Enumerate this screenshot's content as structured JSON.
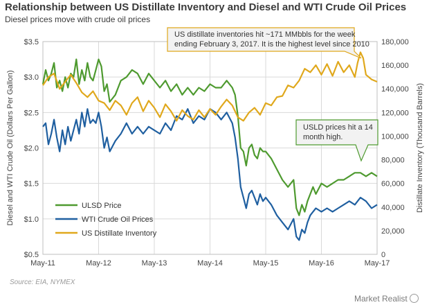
{
  "header": {
    "title": "Relationship between US Distillate Inventory and Diesel and WTI Crude Oil Prices",
    "subtitle": "Diesel prices move with crude oil prices"
  },
  "footer": {
    "source": "Source: EIA, NYMEX",
    "logo_text": "Market Realist"
  },
  "chart_data": {
    "type": "line",
    "x_tick_labels": [
      "May-11",
      "May-12",
      "May-13",
      "May-14",
      "May-15",
      "May-16",
      "May-17"
    ],
    "ylabel": "Diesel and WTI Crude Oil (Dollars Per Gallon)",
    "y2label": "Distillate Inventory (Thousand Barrels)",
    "y_ticks": [
      "$0.5",
      "$1.0",
      "$1.5",
      "$2.0",
      "$2.5",
      "$3.0",
      "$3.5"
    ],
    "y2_ticks": [
      "0",
      "20,000",
      "40,000",
      "60,000",
      "80,000",
      "100,000",
      "120,000",
      "140,000",
      "160,000",
      "180,000"
    ],
    "ylim": [
      0.5,
      3.5
    ],
    "y2lim": [
      0,
      180000
    ],
    "xlim": [
      0,
      6
    ],
    "grid": true,
    "legend_position": "lower-left",
    "series": [
      {
        "name": "ULSD Price",
        "color": "#4e9a2f",
        "axis": "left",
        "x": [
          0,
          0.05,
          0.1,
          0.15,
          0.2,
          0.25,
          0.3,
          0.35,
          0.4,
          0.45,
          0.5,
          0.55,
          0.6,
          0.65,
          0.7,
          0.75,
          0.8,
          0.85,
          0.9,
          0.95,
          1.0,
          1.05,
          1.1,
          1.15,
          1.2,
          1.3,
          1.4,
          1.5,
          1.6,
          1.7,
          1.8,
          1.9,
          2.0,
          2.1,
          2.2,
          2.3,
          2.4,
          2.5,
          2.6,
          2.7,
          2.8,
          2.9,
          3.0,
          3.1,
          3.2,
          3.3,
          3.4,
          3.45,
          3.5,
          3.55,
          3.6,
          3.65,
          3.7,
          3.75,
          3.8,
          3.85,
          3.9,
          3.95,
          4.0,
          4.1,
          4.2,
          4.3,
          4.4,
          4.5,
          4.55,
          4.6,
          4.65,
          4.7,
          4.75,
          4.8,
          4.85,
          4.9,
          5.0,
          5.1,
          5.2,
          5.3,
          5.4,
          5.5,
          5.6,
          5.7,
          5.8,
          5.9,
          6.0
        ],
        "values": [
          2.9,
          3.1,
          2.95,
          3.05,
          3.2,
          2.85,
          2.95,
          2.8,
          3.0,
          2.85,
          3.05,
          3.0,
          3.25,
          2.9,
          3.1,
          2.95,
          3.2,
          3.0,
          2.95,
          3.1,
          3.25,
          3.15,
          2.8,
          2.9,
          2.65,
          2.75,
          2.95,
          3.0,
          3.1,
          3.05,
          2.9,
          3.05,
          2.95,
          2.85,
          2.95,
          2.8,
          2.9,
          2.75,
          2.85,
          2.75,
          2.85,
          2.8,
          2.9,
          2.85,
          2.85,
          2.95,
          2.85,
          2.75,
          2.45,
          2.0,
          1.95,
          1.75,
          2.0,
          2.05,
          1.9,
          1.85,
          2.0,
          1.95,
          1.95,
          1.85,
          1.7,
          1.55,
          1.45,
          1.55,
          1.15,
          1.05,
          1.2,
          1.1,
          1.25,
          1.35,
          1.45,
          1.35,
          1.5,
          1.45,
          1.5,
          1.55,
          1.55,
          1.6,
          1.65,
          1.65,
          1.6,
          1.65,
          1.6
        ]
      },
      {
        "name": "WTI Crude Oil Prices",
        "color": "#1f5fa0",
        "axis": "left",
        "x": [
          0,
          0.05,
          0.1,
          0.15,
          0.2,
          0.25,
          0.3,
          0.35,
          0.4,
          0.45,
          0.5,
          0.55,
          0.6,
          0.65,
          0.7,
          0.75,
          0.8,
          0.85,
          0.9,
          0.95,
          1.0,
          1.05,
          1.1,
          1.15,
          1.2,
          1.3,
          1.4,
          1.5,
          1.6,
          1.7,
          1.8,
          1.9,
          2.0,
          2.1,
          2.2,
          2.3,
          2.4,
          2.5,
          2.6,
          2.7,
          2.8,
          2.9,
          3.0,
          3.1,
          3.2,
          3.3,
          3.4,
          3.45,
          3.5,
          3.55,
          3.6,
          3.65,
          3.7,
          3.75,
          3.8,
          3.85,
          3.9,
          3.95,
          4.0,
          4.1,
          4.2,
          4.3,
          4.4,
          4.5,
          4.55,
          4.6,
          4.65,
          4.7,
          4.75,
          4.8,
          4.85,
          4.9,
          5.0,
          5.1,
          5.2,
          5.3,
          5.4,
          5.5,
          5.6,
          5.7,
          5.8,
          5.9,
          6.0
        ],
        "values": [
          2.3,
          2.35,
          2.05,
          2.2,
          2.4,
          2.15,
          1.95,
          2.25,
          2.05,
          2.3,
          2.1,
          2.25,
          2.4,
          2.2,
          2.5,
          2.3,
          2.55,
          2.35,
          2.4,
          2.35,
          2.5,
          2.3,
          2.0,
          2.15,
          1.95,
          2.1,
          2.2,
          2.35,
          2.2,
          2.3,
          2.2,
          2.3,
          2.25,
          2.2,
          2.35,
          2.25,
          2.45,
          2.4,
          2.55,
          2.35,
          2.45,
          2.4,
          2.55,
          2.5,
          2.4,
          2.5,
          2.35,
          2.15,
          1.85,
          1.45,
          1.3,
          1.15,
          1.35,
          1.4,
          1.3,
          1.2,
          1.35,
          1.25,
          1.3,
          1.2,
          1.05,
          0.95,
          0.85,
          1.0,
          0.75,
          0.7,
          0.85,
          0.8,
          0.95,
          1.05,
          1.1,
          1.15,
          1.1,
          1.15,
          1.1,
          1.15,
          1.2,
          1.25,
          1.2,
          1.3,
          1.25,
          1.15,
          1.2
        ]
      },
      {
        "name": "US Distillate Inventory",
        "color": "#e0a81c",
        "axis": "right",
        "x": [
          0,
          0.1,
          0.2,
          0.3,
          0.4,
          0.5,
          0.6,
          0.7,
          0.8,
          0.9,
          1.0,
          1.1,
          1.2,
          1.3,
          1.4,
          1.5,
          1.6,
          1.7,
          1.8,
          1.9,
          2.0,
          2.1,
          2.2,
          2.3,
          2.4,
          2.5,
          2.6,
          2.7,
          2.8,
          2.9,
          3.0,
          3.1,
          3.2,
          3.3,
          3.4,
          3.5,
          3.6,
          3.7,
          3.8,
          3.9,
          4.0,
          4.1,
          4.2,
          4.3,
          4.4,
          4.5,
          4.6,
          4.7,
          4.8,
          4.9,
          5.0,
          5.1,
          5.2,
          5.3,
          5.4,
          5.5,
          5.6,
          5.65,
          5.7,
          5.75,
          5.8,
          5.85,
          5.9,
          6.0
        ],
        "values": [
          143000,
          150000,
          153000,
          140000,
          146000,
          152000,
          145000,
          137000,
          133000,
          138000,
          130000,
          128000,
          122000,
          130000,
          126000,
          118000,
          128000,
          133000,
          121000,
          130000,
          124000,
          116000,
          127000,
          121000,
          113000,
          122000,
          117000,
          114000,
          122000,
          116000,
          123000,
          118000,
          125000,
          131000,
          126000,
          116000,
          113000,
          120000,
          124000,
          118000,
          128000,
          126000,
          133000,
          134000,
          143000,
          141000,
          147000,
          157000,
          154000,
          160000,
          152000,
          161000,
          151000,
          163000,
          154000,
          160000,
          150000,
          162000,
          171000,
          166000,
          152000,
          150000,
          148000,
          146000
        ]
      }
    ],
    "annotations": [
      "US distillate inventories  hit ~171 MMbbls for the week ending  February 3, 2017. It is the highest level since 2010",
      "USLD prices hit a 14 month high."
    ]
  }
}
